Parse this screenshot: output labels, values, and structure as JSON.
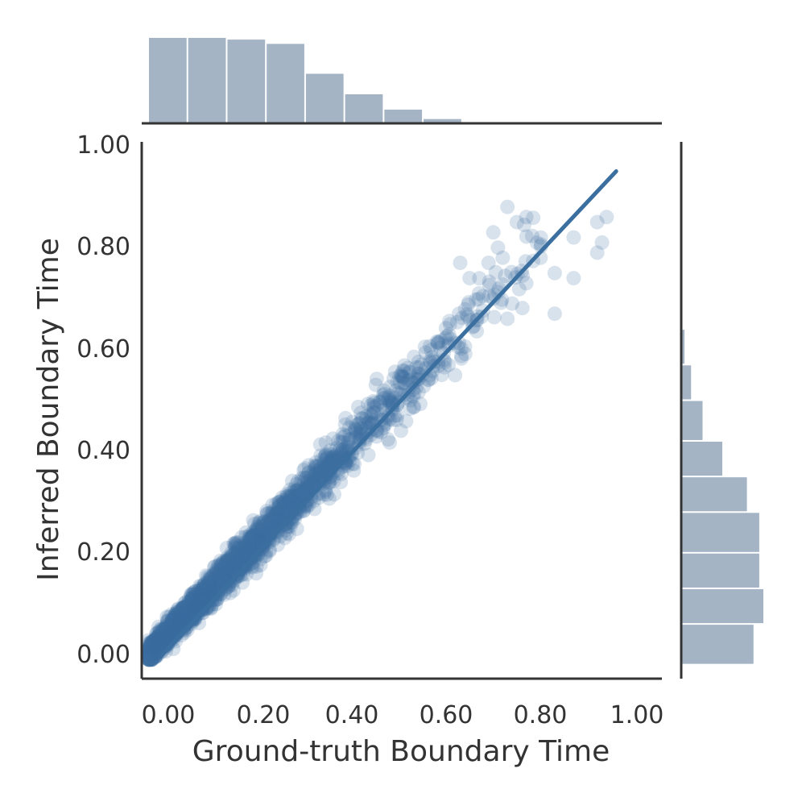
{
  "chart_data": {
    "type": "scatter",
    "xlabel": "Ground-truth Boundary Time",
    "ylabel": "Inferred Boundary Time",
    "xlim": [
      -0.02,
      1.04
    ],
    "ylim": [
      -0.05,
      1.0
    ],
    "x_ticks": [
      "0.00",
      "0.20",
      "0.40",
      "0.60",
      "0.80",
      "1.00"
    ],
    "y_ticks": [
      "0.00",
      "0.20",
      "0.40",
      "0.60",
      "0.80",
      "1.00"
    ],
    "x_tick_values": [
      0.0,
      0.2,
      0.4,
      0.6,
      0.8,
      1.0
    ],
    "y_tick_values": [
      0.0,
      0.2,
      0.4,
      0.6,
      0.8,
      1.0
    ],
    "grid": false,
    "point_color": "#3a6f9f",
    "hist_color": "#a4b4c4",
    "regression_line": {
      "x": [
        0.03,
        0.99
      ],
      "y": [
        0.0,
        0.95
      ]
    },
    "scatter_series": {
      "notes_x_range": [
        0.0,
        0.99
      ],
      "outliers": [
        {
          "x": 0.97,
          "y": 0.86
        },
        {
          "x": 0.96,
          "y": 0.81
        },
        {
          "x": 0.95,
          "y": 0.79
        },
        {
          "x": 0.95,
          "y": 0.85
        },
        {
          "x": 0.9,
          "y": 0.82
        },
        {
          "x": 0.86,
          "y": 0.75
        },
        {
          "x": 0.9,
          "y": 0.74
        },
        {
          "x": 0.8,
          "y": 0.86
        },
        {
          "x": 0.78,
          "y": 0.85
        },
        {
          "x": 0.76,
          "y": 0.88
        },
        {
          "x": 0.83,
          "y": 0.78
        },
        {
          "x": 0.8,
          "y": 0.73
        },
        {
          "x": 0.77,
          "y": 0.69
        },
        {
          "x": 0.73,
          "y": 0.83
        },
        {
          "x": 0.72,
          "y": 0.77
        },
        {
          "x": 0.86,
          "y": 0.67
        },
        {
          "x": 0.76,
          "y": 0.66
        },
        {
          "x": 0.7,
          "y": 0.71
        },
        {
          "x": 0.68,
          "y": 0.74
        },
        {
          "x": 0.66,
          "y": 0.77
        },
        {
          "x": 0.74,
          "y": 0.8
        },
        {
          "x": 0.75,
          "y": 0.78
        }
      ]
    },
    "top_histogram": {
      "bin_edges": [
        0.0,
        0.083,
        0.166,
        0.249,
        0.332,
        0.415,
        0.498,
        0.581,
        0.664,
        0.747
      ],
      "relative_heights": [
        1.0,
        1.0,
        0.98,
        0.93,
        0.58,
        0.34,
        0.16,
        0.05,
        0.01
      ]
    },
    "right_histogram": {
      "bin_edges": [
        -0.02,
        0.06,
        0.13,
        0.2,
        0.28,
        0.35,
        0.42,
        0.5,
        0.57,
        0.64,
        0.72
      ],
      "relative_heights": [
        0.88,
        1.0,
        0.95,
        0.95,
        0.8,
        0.5,
        0.26,
        0.12,
        0.04,
        0.01
      ]
    }
  }
}
